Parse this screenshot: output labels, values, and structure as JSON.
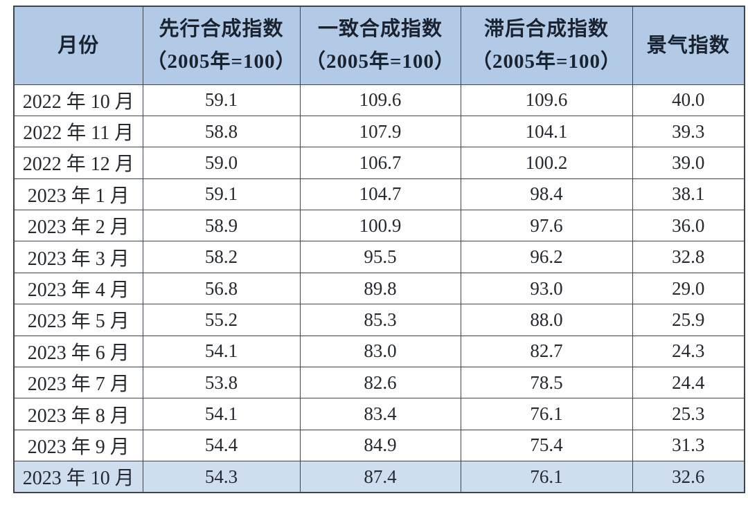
{
  "table": {
    "columns": [
      {
        "label": "月份",
        "sub": ""
      },
      {
        "label": "先行合成指数",
        "sub": "（2005年=100）"
      },
      {
        "label": "一致合成指数",
        "sub": "（2005年=100）"
      },
      {
        "label": "滞后合成指数",
        "sub": "（2005年=100）"
      },
      {
        "label": "景气指数",
        "sub": ""
      }
    ],
    "rows": [
      {
        "month": "2022 年 10 月",
        "leading": "59.1",
        "coincident": "109.6",
        "lagging": "109.6",
        "prosperity": "40.0"
      },
      {
        "month": "2022 年 11 月",
        "leading": "58.8",
        "coincident": "107.9",
        "lagging": "104.1",
        "prosperity": "39.3"
      },
      {
        "month": "2022 年 12 月",
        "leading": "59.0",
        "coincident": "106.7",
        "lagging": "100.2",
        "prosperity": "39.0"
      },
      {
        "month": "2023 年 1 月",
        "leading": "59.1",
        "coincident": "104.7",
        "lagging": "98.4",
        "prosperity": "38.1"
      },
      {
        "month": "2023 年 2 月",
        "leading": "58.9",
        "coincident": "100.9",
        "lagging": "97.6",
        "prosperity": "36.0"
      },
      {
        "month": "2023 年 3 月",
        "leading": "58.2",
        "coincident": "95.5",
        "lagging": "96.2",
        "prosperity": "32.8"
      },
      {
        "month": "2023 年 4 月",
        "leading": "56.8",
        "coincident": "89.8",
        "lagging": "93.0",
        "prosperity": "29.0"
      },
      {
        "month": "2023 年 5 月",
        "leading": "55.2",
        "coincident": "85.3",
        "lagging": "88.0",
        "prosperity": "25.9"
      },
      {
        "month": "2023 年 6 月",
        "leading": "54.1",
        "coincident": "83.0",
        "lagging": "82.7",
        "prosperity": "24.3"
      },
      {
        "month": "2023 年 7 月",
        "leading": "53.8",
        "coincident": "82.6",
        "lagging": "78.5",
        "prosperity": "24.4"
      },
      {
        "month": "2023 年 8 月",
        "leading": "54.1",
        "coincident": "83.4",
        "lagging": "76.1",
        "prosperity": "25.3"
      },
      {
        "month": "2023 年 9 月",
        "leading": "54.4",
        "coincident": "84.9",
        "lagging": "75.4",
        "prosperity": "31.3"
      },
      {
        "month": "2023 年 10 月",
        "leading": "54.3",
        "coincident": "87.4",
        "lagging": "76.1",
        "prosperity": "32.6"
      }
    ],
    "highlight_row_index": 12,
    "colors": {
      "header_bg": "#b2cae6",
      "highlight_bg": "#cfdeee",
      "border": "#3f434b",
      "text": "#24282f",
      "header_text": "#1a2230"
    }
  },
  "chart_data": {
    "type": "table",
    "title": "",
    "columns": [
      "月份",
      "先行合成指数（2005年=100）",
      "一致合成指数（2005年=100）",
      "滞后合成指数（2005年=100）",
      "景气指数"
    ],
    "rows": [
      [
        "2022 年 10 月",
        59.1,
        109.6,
        109.6,
        40.0
      ],
      [
        "2022 年 11 月",
        58.8,
        107.9,
        104.1,
        39.3
      ],
      [
        "2022 年 12 月",
        59.0,
        106.7,
        100.2,
        39.0
      ],
      [
        "2023 年 1 月",
        59.1,
        104.7,
        98.4,
        38.1
      ],
      [
        "2023 年 2 月",
        58.9,
        100.9,
        97.6,
        36.0
      ],
      [
        "2023 年 3 月",
        58.2,
        95.5,
        96.2,
        32.8
      ],
      [
        "2023 年 4 月",
        56.8,
        89.8,
        93.0,
        29.0
      ],
      [
        "2023 年 5 月",
        55.2,
        85.3,
        88.0,
        25.9
      ],
      [
        "2023 年 6 月",
        54.1,
        83.0,
        82.7,
        24.3
      ],
      [
        "2023 年 7 月",
        53.8,
        82.6,
        78.5,
        24.4
      ],
      [
        "2023 年 8 月",
        54.1,
        83.4,
        76.1,
        25.3
      ],
      [
        "2023 年 9 月",
        54.4,
        84.9,
        75.4,
        31.3
      ],
      [
        "2023 年 10 月",
        54.3,
        87.4,
        76.1,
        32.6
      ]
    ],
    "highlighted_row": "2023 年 10 月",
    "layout": {
      "header_fill": "#b2cae6",
      "highlight_fill": "#cfdeee",
      "grid": "on"
    }
  }
}
